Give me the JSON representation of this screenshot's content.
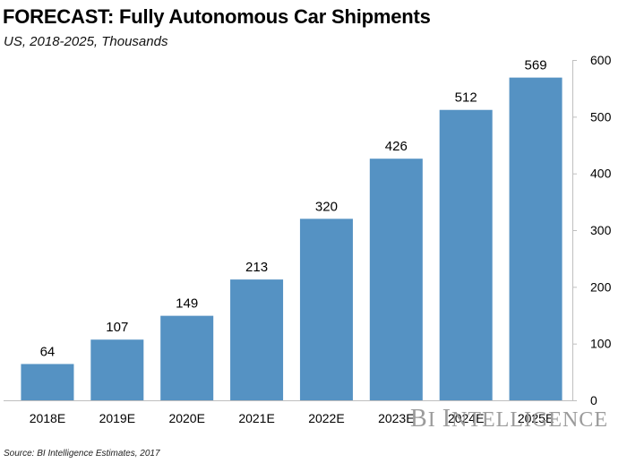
{
  "header": {
    "title": "FORECAST: Fully Autonomous Car Shipments",
    "subtitle": "US, 2018-2025, Thousands"
  },
  "footer": {
    "source": "Source: BI Intelligence Estimates, 2017",
    "brand": "BI INTELLIGENCE"
  },
  "colors": {
    "bar": "#5592c3",
    "axis": "#bfbfbf",
    "text": "#000000"
  },
  "chart_data": {
    "type": "bar",
    "title": "FORECAST: Fully Autonomous Car Shipments",
    "subtitle": "US, 2018-2025, Thousands",
    "categories": [
      "2018E",
      "2019E",
      "2020E",
      "2021E",
      "2022E",
      "2023E",
      "2024E",
      "2025E"
    ],
    "values": [
      64,
      107,
      149,
      213,
      320,
      426,
      512,
      569
    ],
    "ylim": [
      0,
      600
    ],
    "yticks": [
      0,
      100,
      200,
      300,
      400,
      500,
      600
    ],
    "yaxis_side": "right",
    "grid": false,
    "data_labels": true
  }
}
